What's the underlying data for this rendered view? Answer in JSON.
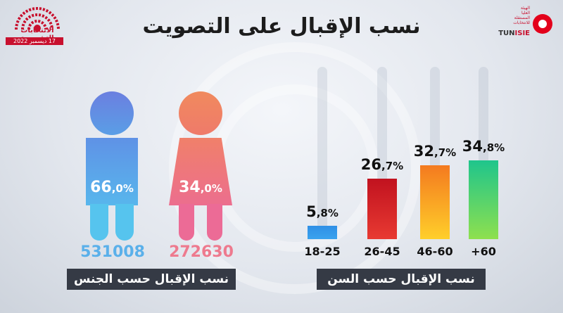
{
  "title": "نسب الإقبال على التصويت",
  "logo_left": {
    "line1": "الانتخابات التشريعية",
    "date": "17 ديسمبر 2022"
  },
  "logo_right": {
    "name_pre": "TUN",
    "name_post": "ISIE",
    "lines": [
      "الهيئة",
      "العليا",
      "المستقلة",
      "للانتخابات"
    ]
  },
  "colors": {
    "male": "#5aa7e6",
    "female": "#ef7a7a",
    "caption_bg": "#353a45"
  },
  "gender": {
    "caption": "نسب الإقبال حسب الجنس",
    "male": {
      "percent_int": "66",
      "percent_dec": ",0%",
      "count": "531008"
    },
    "female": {
      "percent_int": "34",
      "percent_dec": ",0%",
      "count": "272630"
    }
  },
  "age_caption": "نسب الإقبال حسب السن",
  "chart_data": {
    "type": "bar",
    "categories": [
      "18-25",
      "26-45",
      "46-60",
      "+60"
    ],
    "values": [
      5.8,
      26.7,
      32.7,
      34.8
    ],
    "value_labels": [
      {
        "int": "5",
        "dec": ",8%"
      },
      {
        "int": "26",
        "dec": ",7%"
      },
      {
        "int": "32",
        "dec": ",7%"
      },
      {
        "int": "34",
        "dec": ",8%"
      }
    ],
    "colors": [
      "#2f8fe6",
      "#c1121f",
      "#f47a1f",
      "#1ec58c"
    ],
    "ylim": [
      0,
      34.8
    ]
  }
}
